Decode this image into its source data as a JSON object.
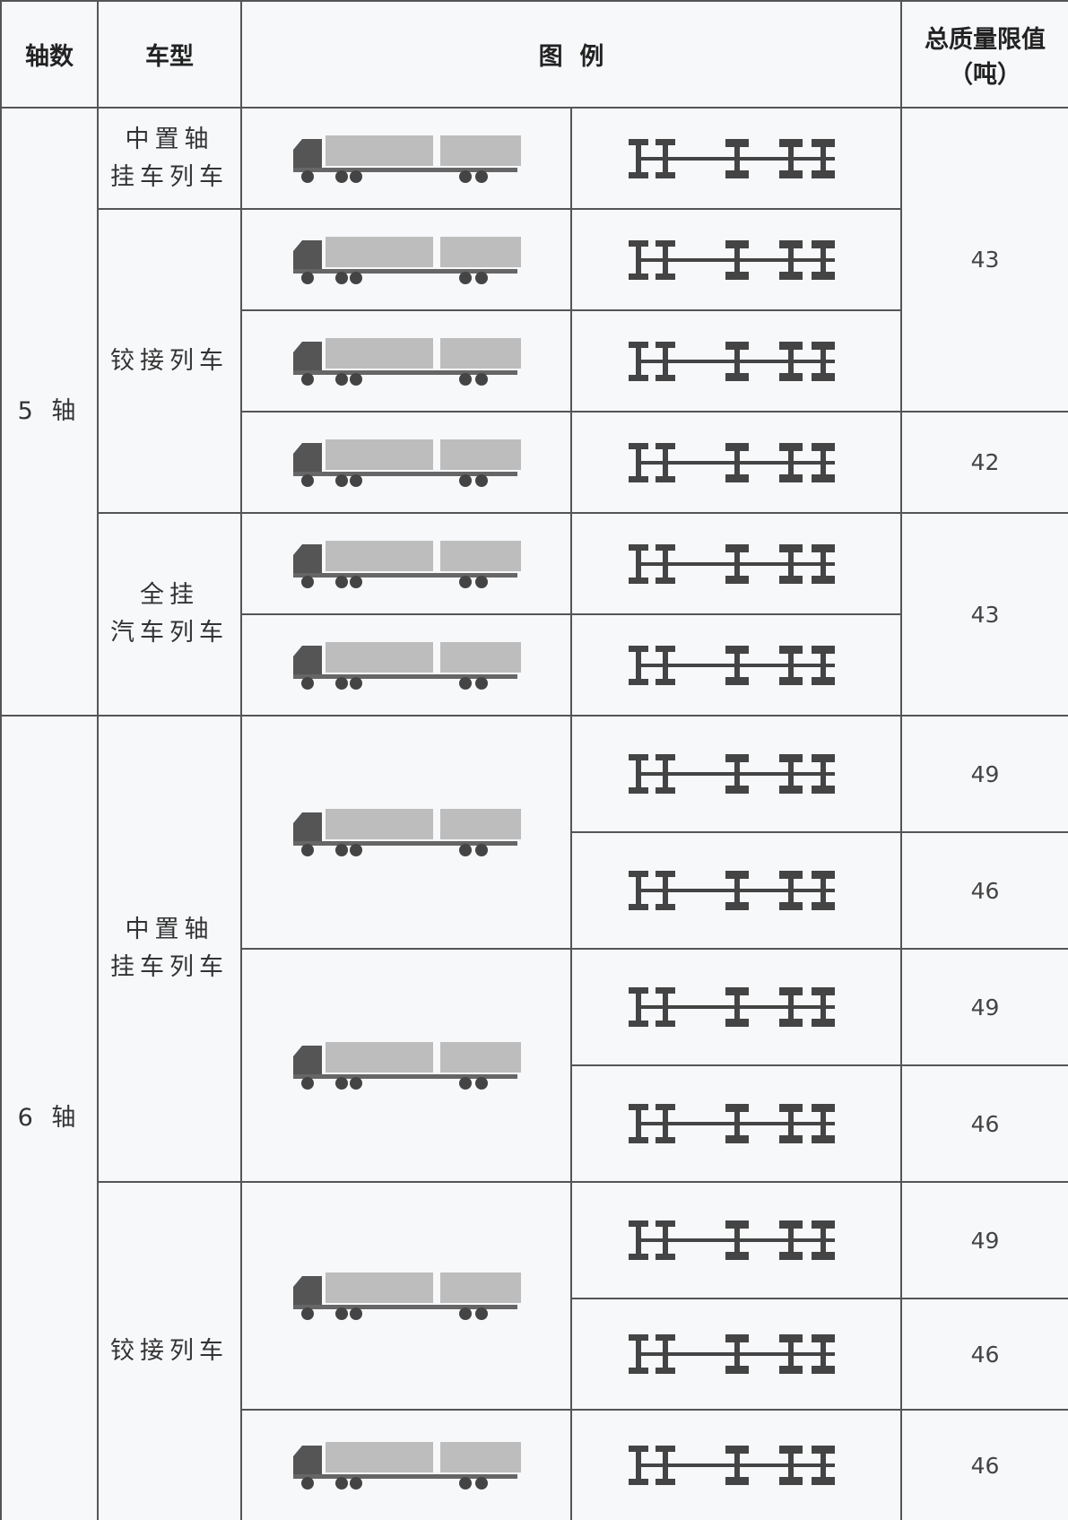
{
  "header": {
    "axles": "轴数",
    "type": "车型",
    "legend": "图  例",
    "limit": "总质量限值",
    "unit": "（吨）"
  },
  "sections": [
    {
      "axles": "5 轴",
      "vehicles": [
        {
          "name": [
            "中置轴",
            "挂车列车"
          ]
        },
        {
          "name": [
            "铰接列车"
          ]
        },
        {
          "name": [
            "全挂",
            "汽车列车"
          ]
        }
      ],
      "limits": [
        43,
        42,
        43
      ]
    },
    {
      "axles": "6 轴",
      "vehicles": [
        {
          "name": [
            "中置轴",
            "挂车列车"
          ]
        },
        {
          "name": [
            "铰接列车"
          ]
        }
      ],
      "limits": [
        49,
        46,
        49,
        46,
        49,
        46,
        46
      ]
    }
  ]
}
